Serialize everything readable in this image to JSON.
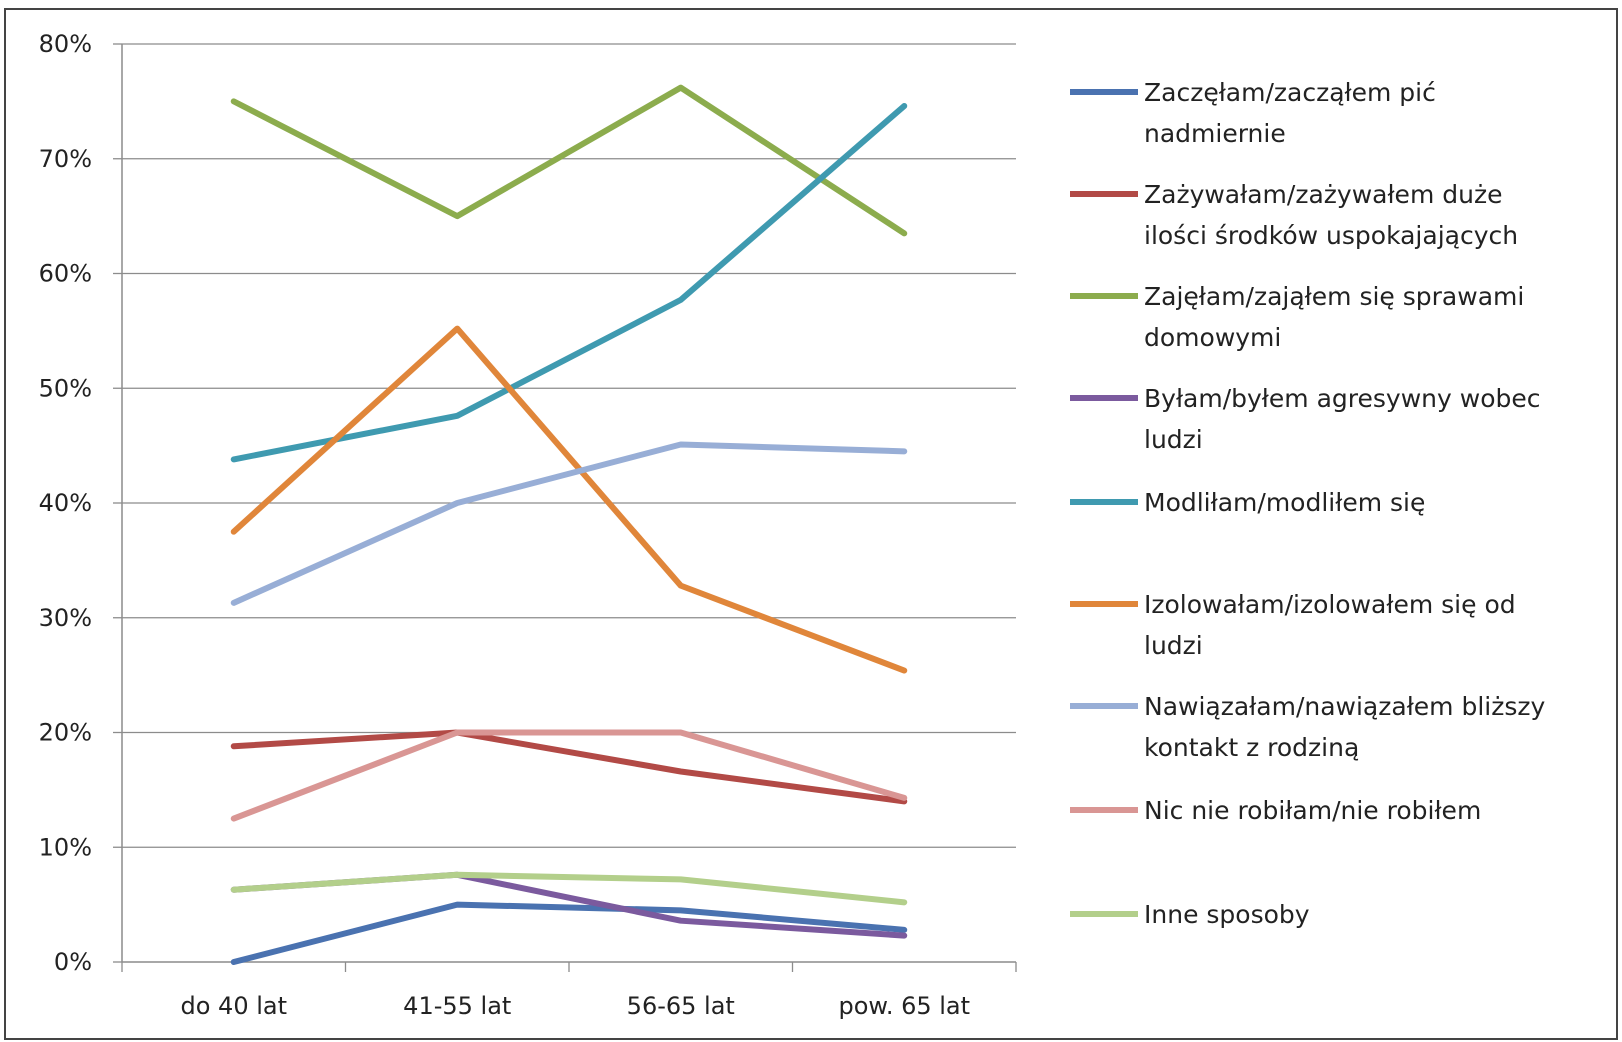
{
  "chart_data": {
    "type": "line",
    "title": "",
    "xlabel": "",
    "ylabel": "",
    "categories": [
      "do 40 lat",
      "41-55 lat",
      "56-65 lat",
      "pow. 65 lat"
    ],
    "ylim": [
      0,
      80
    ],
    "yticks": [
      "0%",
      "10%",
      "20%",
      "30%",
      "40%",
      "50%",
      "60%",
      "70%",
      "80%"
    ],
    "grid": true,
    "legend_position": "right",
    "series": [
      {
        "name": "Zaczęłam/zacząłem pić nadmiernie",
        "legend_lines": [
          "Zaczęłam/zacząłem pić",
          "nadmiernie"
        ],
        "color": "#4a72b0",
        "values": [
          0,
          5,
          4.5,
          2.8
        ]
      },
      {
        "name": "Zażywałam/zażywałem duże ilości środków uspokajających",
        "legend_lines": [
          "Zażywałam/zażywałem duże",
          "ilości środków uspokajających"
        ],
        "color": "#b24a46",
        "values": [
          18.8,
          20,
          16.6,
          14
        ]
      },
      {
        "name": "Zajęłam/zająłem się sprawami domowymi",
        "legend_lines": [
          "Zajęłam/zająłem się sprawami",
          "domowymi"
        ],
        "color": "#8cac4d",
        "values": [
          75,
          65,
          76.2,
          63.5
        ]
      },
      {
        "name": "Byłam/byłem agresywny wobec ludzi",
        "legend_lines": [
          "Byłam/byłem agresywny wobec",
          "ludzi"
        ],
        "color": "#7b5a9e",
        "values": [
          6.3,
          7.6,
          3.6,
          2.3
        ]
      },
      {
        "name": "Modliłam/modliłem się",
        "legend_lines": [
          "Modliłam/modliłem się"
        ],
        "color": "#3f9ab0",
        "values": [
          43.8,
          47.6,
          57.7,
          74.6
        ]
      },
      {
        "name": "Izolowałam/izolowałem się od ludzi",
        "legend_lines": [
          "Izolowałam/izolowałem się od",
          "ludzi"
        ],
        "color": "#e0863a",
        "values": [
          37.5,
          55.2,
          32.8,
          25.4
        ]
      },
      {
        "name": "Nawiązałam/nawiązałem bliższy kontakt z rodziną",
        "legend_lines": [
          "Nawiązałam/nawiązałem bliższy",
          "kontakt z rodziną"
        ],
        "color": "#98aed6",
        "values": [
          31.3,
          40,
          45.1,
          44.5
        ]
      },
      {
        "name": "Nic nie robiłam/nie robiłem",
        "legend_lines": [
          "Nic nie robiłam/nie robiłem"
        ],
        "color": "#d99694",
        "values": [
          12.5,
          20,
          20,
          14.3
        ]
      },
      {
        "name": "Inne sposoby",
        "legend_lines": [
          "Inne sposoby"
        ],
        "color": "#b3cf8b",
        "values": [
          6.3,
          7.6,
          7.2,
          5.2
        ]
      }
    ]
  }
}
